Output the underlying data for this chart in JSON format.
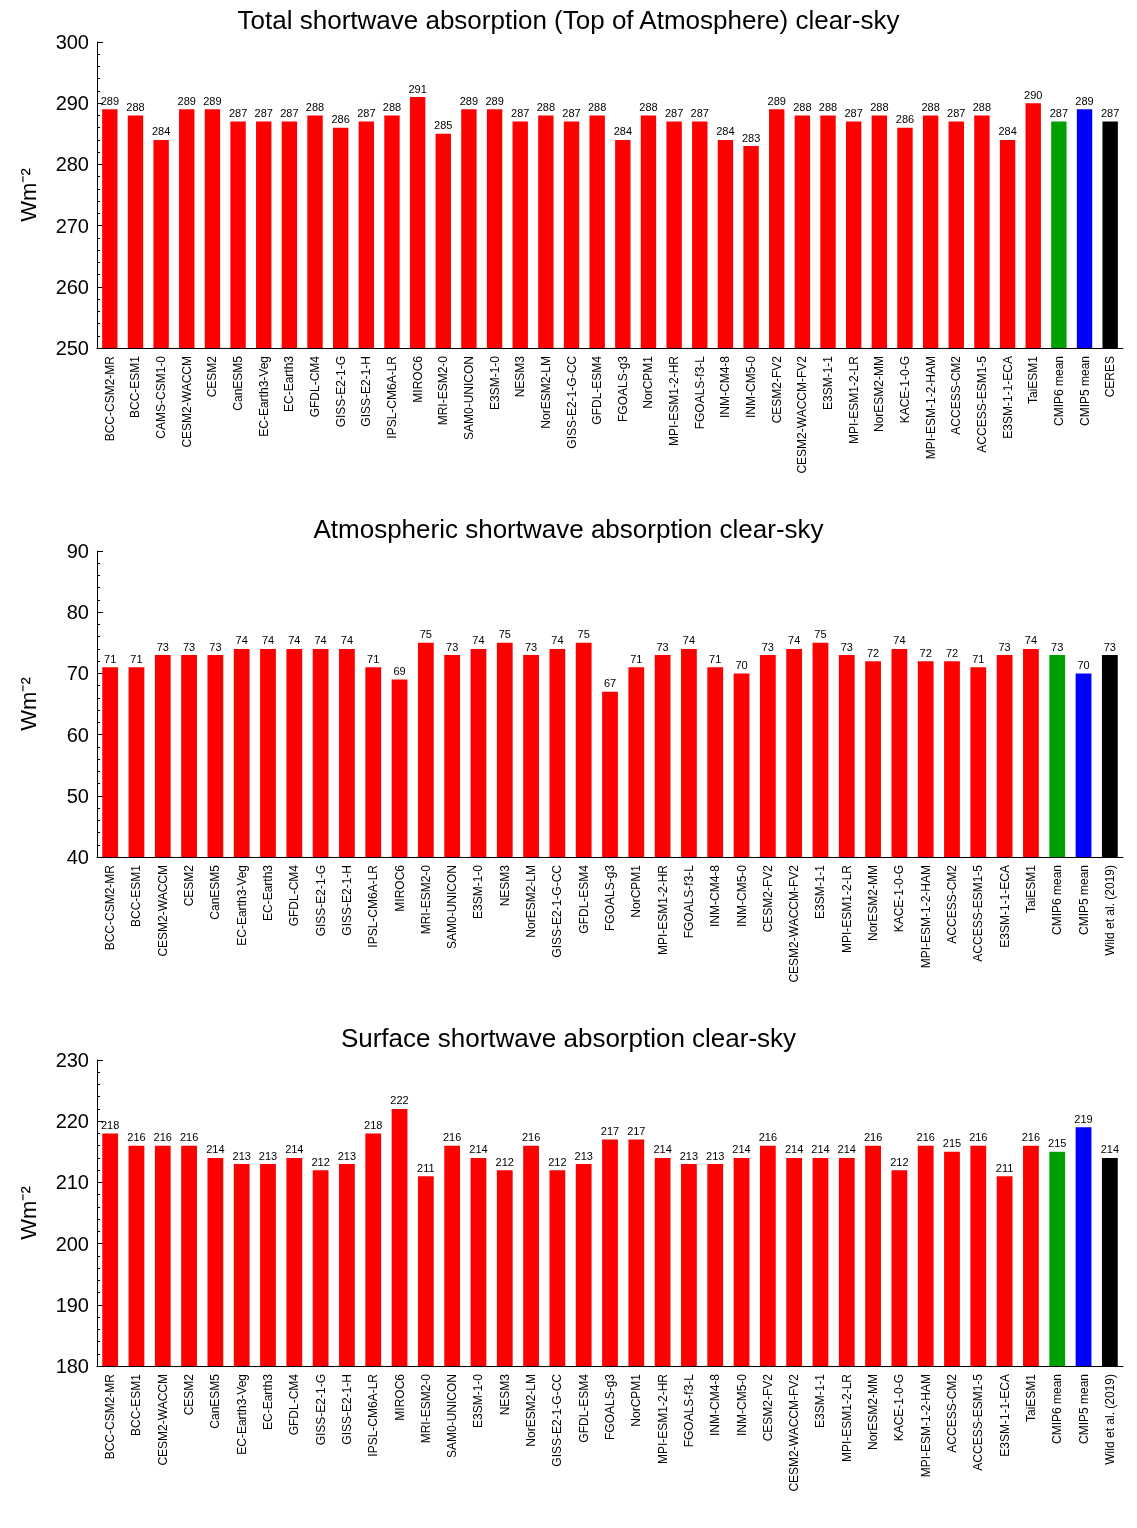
{
  "chart_data": [
    {
      "type": "bar",
      "title": "Total shortwave absorption (Top of Atmosphere) clear-sky",
      "ylabel": "Wm⁻²",
      "categories": [
        "BCC-CSM2-MR",
        "BCC-ESM1",
        "CAMS-CSM1-0",
        "CESM2-WACCM",
        "CESM2",
        "CanESM5",
        "EC-Earth3-Veg",
        "EC-Earth3",
        "GFDL-CM4",
        "GISS-E2-1-G",
        "GISS-E2-1-H",
        "IPSL-CM6A-LR",
        "MIROC6",
        "MRI-ESM2-0",
        "SAM0-UNICON",
        "E3SM-1-0",
        "NESM3",
        "NorESM2-LM",
        "GISS-E2-1-G-CC",
        "GFDL-ESM4",
        "FGOALS-g3",
        "NorCPM1",
        "MPI-ESM1-2-HR",
        "FGOALS-f3-L",
        "INM-CM4-8",
        "INM-CM5-0",
        "CESM2-FV2",
        "CESM2-WACCM-FV2",
        "E3SM-1-1",
        "MPI-ESM1-2-LR",
        "NorESM2-MM",
        "KACE-1-0-G",
        "MPI-ESM-1-2-HAM",
        "ACCESS-CM2",
        "ACCESS-ESM1-5",
        "E3SM-1-1-ECA",
        "TaiESM1",
        "CMIP6 mean",
        "CMIP5 mean",
        "CERES"
      ],
      "values": [
        289,
        288,
        284,
        289,
        289,
        287,
        287,
        287,
        288,
        286,
        287,
        288,
        291,
        285,
        289,
        289,
        287,
        288,
        287,
        288,
        284,
        288,
        287,
        287,
        284,
        283,
        289,
        288,
        288,
        287,
        288,
        286,
        288,
        287,
        288,
        284,
        290,
        287,
        289,
        287
      ],
      "colors": [
        "#ff0000",
        "#ff0000",
        "#ff0000",
        "#ff0000",
        "#ff0000",
        "#ff0000",
        "#ff0000",
        "#ff0000",
        "#ff0000",
        "#ff0000",
        "#ff0000",
        "#ff0000",
        "#ff0000",
        "#ff0000",
        "#ff0000",
        "#ff0000",
        "#ff0000",
        "#ff0000",
        "#ff0000",
        "#ff0000",
        "#ff0000",
        "#ff0000",
        "#ff0000",
        "#ff0000",
        "#ff0000",
        "#ff0000",
        "#ff0000",
        "#ff0000",
        "#ff0000",
        "#ff0000",
        "#ff0000",
        "#ff0000",
        "#ff0000",
        "#ff0000",
        "#ff0000",
        "#ff0000",
        "#ff0000",
        "#00a000",
        "#0000ff",
        "#000000"
      ],
      "ylim": [
        250,
        300
      ],
      "yticks": [
        250,
        260,
        270,
        280,
        290,
        300
      ],
      "data_labels": true
    },
    {
      "type": "bar",
      "title": "Atmospheric shortwave absorption clear-sky",
      "ylabel": "Wm⁻²",
      "categories": [
        "BCC-CSM2-MR",
        "BCC-ESM1",
        "CESM2-WACCM",
        "CESM2",
        "CanESM5",
        "EC-Earth3-Veg",
        "EC-Earth3",
        "GFDL-CM4",
        "GISS-E2-1-G",
        "GISS-E2-1-H",
        "IPSL-CM6A-LR",
        "MIROC6",
        "MRI-ESM2-0",
        "SAM0-UNICON",
        "E3SM-1-0",
        "NESM3",
        "NorESM2-LM",
        "GISS-E2-1-G-CC",
        "GFDL-ESM4",
        "FGOALS-g3",
        "NorCPM1",
        "MPI-ESM1-2-HR",
        "FGOALS-f3-L",
        "INM-CM4-8",
        "INM-CM5-0",
        "CESM2-FV2",
        "CESM2-WACCM-FV2",
        "E3SM-1-1",
        "MPI-ESM1-2-LR",
        "NorESM2-MM",
        "KACE-1-0-G",
        "MPI-ESM-1-2-HAM",
        "ACCESS-CM2",
        "ACCESS-ESM1-5",
        "E3SM-1-1-ECA",
        "TaiESM1",
        "CMIP6 mean",
        "CMIP5 mean",
        "Wild et al. (2019)"
      ],
      "values": [
        71,
        71,
        73,
        73,
        73,
        74,
        74,
        74,
        74,
        74,
        71,
        69,
        75,
        73,
        74,
        75,
        73,
        74,
        75,
        67,
        71,
        73,
        74,
        71,
        70,
        73,
        74,
        75,
        73,
        72,
        74,
        72,
        72,
        71,
        73,
        74,
        73,
        70,
        73
      ],
      "colors": [
        "#ff0000",
        "#ff0000",
        "#ff0000",
        "#ff0000",
        "#ff0000",
        "#ff0000",
        "#ff0000",
        "#ff0000",
        "#ff0000",
        "#ff0000",
        "#ff0000",
        "#ff0000",
        "#ff0000",
        "#ff0000",
        "#ff0000",
        "#ff0000",
        "#ff0000",
        "#ff0000",
        "#ff0000",
        "#ff0000",
        "#ff0000",
        "#ff0000",
        "#ff0000",
        "#ff0000",
        "#ff0000",
        "#ff0000",
        "#ff0000",
        "#ff0000",
        "#ff0000",
        "#ff0000",
        "#ff0000",
        "#ff0000",
        "#ff0000",
        "#ff0000",
        "#ff0000",
        "#ff0000",
        "#00a000",
        "#0000ff",
        "#000000"
      ],
      "ylim": [
        40,
        90
      ],
      "yticks": [
        40,
        50,
        60,
        70,
        80,
        90
      ],
      "data_labels": true
    },
    {
      "type": "bar",
      "title": "Surface shortwave absorption clear-sky",
      "ylabel": "Wm⁻²",
      "categories": [
        "BCC-CSM2-MR",
        "BCC-ESM1",
        "CESM2-WACCM",
        "CESM2",
        "CanESM5",
        "EC-Earth3-Veg",
        "EC-Earth3",
        "GFDL-CM4",
        "GISS-E2-1-G",
        "GISS-E2-1-H",
        "IPSL-CM6A-LR",
        "MIROC6",
        "MRI-ESM2-0",
        "SAM0-UNICON",
        "E3SM-1-0",
        "NESM3",
        "NorESM2-LM",
        "GISS-E2-1-G-CC",
        "GFDL-ESM4",
        "FGOALS-g3",
        "NorCPM1",
        "MPI-ESM1-2-HR",
        "FGOALS-f3-L",
        "INM-CM4-8",
        "INM-CM5-0",
        "CESM2-FV2",
        "CESM2-WACCM-FV2",
        "E3SM-1-1",
        "MPI-ESM1-2-LR",
        "NorESM2-MM",
        "KACE-1-0-G",
        "MPI-ESM-1-2-HAM",
        "ACCESS-CM2",
        "ACCESS-ESM1-5",
        "E3SM-1-1-ECA",
        "TaiESM1",
        "CMIP6 mean",
        "CMIP5 mean",
        "Wild et al. (2019)"
      ],
      "values": [
        218,
        216,
        216,
        216,
        214,
        213,
        213,
        214,
        212,
        213,
        218,
        222,
        211,
        216,
        214,
        212,
        216,
        212,
        213,
        217,
        217,
        214,
        213,
        213,
        214,
        216,
        214,
        214,
        214,
        216,
        212,
        216,
        215,
        216,
        211,
        216,
        215,
        219,
        214
      ],
      "colors": [
        "#ff0000",
        "#ff0000",
        "#ff0000",
        "#ff0000",
        "#ff0000",
        "#ff0000",
        "#ff0000",
        "#ff0000",
        "#ff0000",
        "#ff0000",
        "#ff0000",
        "#ff0000",
        "#ff0000",
        "#ff0000",
        "#ff0000",
        "#ff0000",
        "#ff0000",
        "#ff0000",
        "#ff0000",
        "#ff0000",
        "#ff0000",
        "#ff0000",
        "#ff0000",
        "#ff0000",
        "#ff0000",
        "#ff0000",
        "#ff0000",
        "#ff0000",
        "#ff0000",
        "#ff0000",
        "#ff0000",
        "#ff0000",
        "#ff0000",
        "#ff0000",
        "#ff0000",
        "#ff0000",
        "#00a000",
        "#0000ff",
        "#000000"
      ],
      "ylim": [
        180,
        230
      ],
      "yticks": [
        180,
        190,
        200,
        210,
        220,
        230
      ],
      "data_labels": true
    }
  ]
}
